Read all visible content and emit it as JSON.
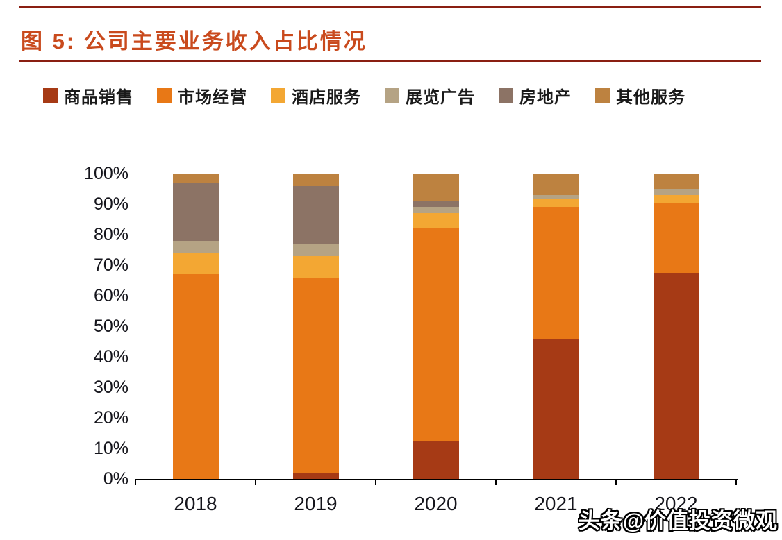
{
  "header": {
    "title": "图 5:  公司主要业务收入占比情况"
  },
  "watermark": "头条@价值投资微观",
  "colors": {
    "title": "#c94a1d",
    "rule": "#8a1f12",
    "axis_text": "#15151c"
  },
  "chart_data": {
    "type": "bar",
    "stacked": true,
    "title": "公司主要业务收入占比情况",
    "categories": [
      "2018",
      "2019",
      "2020",
      "2021",
      "2022"
    ],
    "series": [
      {
        "name": "商品销售",
        "color": "#a63a15",
        "values": [
          0,
          2,
          12.5,
          46,
          67.5
        ]
      },
      {
        "name": "市场经营",
        "color": "#e87816",
        "values": [
          67,
          64,
          69.5,
          43,
          23
        ]
      },
      {
        "name": "酒店服务",
        "color": "#f3a733",
        "values": [
          7,
          7,
          5,
          2.5,
          2.5
        ]
      },
      {
        "name": "展览广告",
        "color": "#b5a384",
        "values": [
          4,
          4,
          2,
          1.5,
          2
        ]
      },
      {
        "name": "房地产",
        "color": "#8c7365",
        "values": [
          19,
          19,
          2,
          0,
          0
        ]
      },
      {
        "name": "其他服务",
        "color": "#bd8240",
        "values": [
          3,
          4,
          9,
          7,
          5
        ]
      }
    ],
    "xlabel": "",
    "ylabel": "",
    "ylim": [
      0,
      100
    ],
    "ytick_step": 10,
    "ytick_labels": [
      "0%",
      "10%",
      "20%",
      "30%",
      "40%",
      "50%",
      "60%",
      "70%",
      "80%",
      "90%",
      "100%"
    ],
    "legend_position": "top",
    "grid": false
  }
}
